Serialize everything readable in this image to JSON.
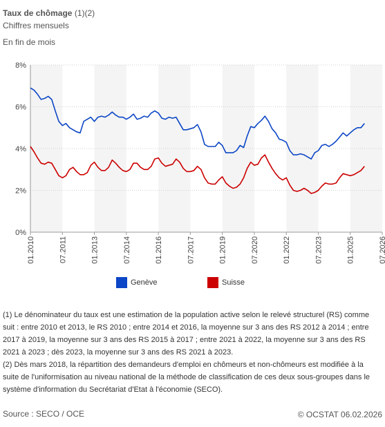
{
  "header": {
    "title_bold": "Taux de chômage",
    "title_refs": " (1)(2)",
    "subtitle": "Chiffres mensuels",
    "note": "En fin de mois"
  },
  "chart_data": {
    "type": "line",
    "title": "",
    "xlabel": "",
    "ylabel": "",
    "ylim": [
      0,
      8
    ],
    "yticks": [
      "0%",
      "2%",
      "4%",
      "6%",
      "8%"
    ],
    "xlim": [
      "2010-01",
      "2026-07"
    ],
    "xticks": [
      "01.2010",
      "07.2011",
      "01.2013",
      "07.2014",
      "01.2016",
      "07.2017",
      "01.2019",
      "07.2020",
      "01.2022",
      "07.2023",
      "01.2025",
      "07.2026"
    ],
    "grid": "vertical bands",
    "legend_position": "bottom",
    "series": [
      {
        "name": "Genève",
        "color": "#0b46c6",
        "points": [
          [
            "2010-01",
            6.9
          ],
          [
            "2010-03",
            6.8
          ],
          [
            "2010-05",
            6.6
          ],
          [
            "2010-07",
            6.35
          ],
          [
            "2010-09",
            6.4
          ],
          [
            "2010-11",
            6.5
          ],
          [
            "2011-01",
            6.35
          ],
          [
            "2011-03",
            5.8
          ],
          [
            "2011-05",
            5.3
          ],
          [
            "2011-07",
            5.1
          ],
          [
            "2011-09",
            5.2
          ],
          [
            "2011-11",
            5.0
          ],
          [
            "2012-01",
            4.9
          ],
          [
            "2012-03",
            4.8
          ],
          [
            "2012-05",
            4.75
          ],
          [
            "2012-07",
            5.3
          ],
          [
            "2012-09",
            5.4
          ],
          [
            "2012-11",
            5.5
          ],
          [
            "2013-01",
            5.3
          ],
          [
            "2013-03",
            5.5
          ],
          [
            "2013-05",
            5.55
          ],
          [
            "2013-07",
            5.5
          ],
          [
            "2013-09",
            5.6
          ],
          [
            "2013-11",
            5.75
          ],
          [
            "2014-01",
            5.6
          ],
          [
            "2014-03",
            5.5
          ],
          [
            "2014-05",
            5.5
          ],
          [
            "2014-07",
            5.4
          ],
          [
            "2014-09",
            5.5
          ],
          [
            "2014-11",
            5.65
          ],
          [
            "2015-01",
            5.4
          ],
          [
            "2015-03",
            5.45
          ],
          [
            "2015-05",
            5.55
          ],
          [
            "2015-07",
            5.5
          ],
          [
            "2015-09",
            5.7
          ],
          [
            "2015-11",
            5.8
          ],
          [
            "2016-01",
            5.7
          ],
          [
            "2016-03",
            5.45
          ],
          [
            "2016-05",
            5.4
          ],
          [
            "2016-07",
            5.5
          ],
          [
            "2016-09",
            5.45
          ],
          [
            "2016-11",
            5.5
          ],
          [
            "2017-01",
            5.2
          ],
          [
            "2017-03",
            4.9
          ],
          [
            "2017-05",
            4.9
          ],
          [
            "2017-07",
            4.95
          ],
          [
            "2017-09",
            5.0
          ],
          [
            "2017-11",
            5.15
          ],
          [
            "2018-01",
            4.8
          ],
          [
            "2018-03",
            4.2
          ],
          [
            "2018-05",
            4.1
          ],
          [
            "2018-07",
            4.1
          ],
          [
            "2018-09",
            4.1
          ],
          [
            "2018-11",
            4.3
          ],
          [
            "2019-01",
            4.15
          ],
          [
            "2019-03",
            3.8
          ],
          [
            "2019-05",
            3.8
          ],
          [
            "2019-07",
            3.8
          ],
          [
            "2019-09",
            3.9
          ],
          [
            "2019-11",
            4.15
          ],
          [
            "2020-01",
            4.05
          ],
          [
            "2020-03",
            4.6
          ],
          [
            "2020-05",
            5.05
          ],
          [
            "2020-07",
            5.0
          ],
          [
            "2020-09",
            5.2
          ],
          [
            "2020-11",
            5.35
          ],
          [
            "2021-01",
            5.55
          ],
          [
            "2021-03",
            5.3
          ],
          [
            "2021-05",
            4.95
          ],
          [
            "2021-07",
            4.75
          ],
          [
            "2021-09",
            4.45
          ],
          [
            "2021-11",
            4.4
          ],
          [
            "2022-01",
            4.3
          ],
          [
            "2022-03",
            3.9
          ],
          [
            "2022-05",
            3.7
          ],
          [
            "2022-07",
            3.7
          ],
          [
            "2022-09",
            3.75
          ],
          [
            "2022-11",
            3.7
          ],
          [
            "2023-01",
            3.6
          ],
          [
            "2023-03",
            3.5
          ],
          [
            "2023-05",
            3.8
          ],
          [
            "2023-07",
            3.9
          ],
          [
            "2023-09",
            4.15
          ],
          [
            "2023-11",
            4.2
          ],
          [
            "2024-01",
            4.1
          ],
          [
            "2024-03",
            4.2
          ],
          [
            "2024-05",
            4.35
          ],
          [
            "2024-07",
            4.55
          ],
          [
            "2024-09",
            4.75
          ],
          [
            "2024-11",
            4.6
          ],
          [
            "2025-01",
            4.75
          ],
          [
            "2025-03",
            4.9
          ],
          [
            "2025-05",
            5.0
          ],
          [
            "2025-07",
            5.0
          ],
          [
            "2025-09",
            5.2
          ]
        ]
      },
      {
        "name": "Suisse",
        "color": "#cc0000",
        "points": [
          [
            "2010-01",
            4.1
          ],
          [
            "2010-03",
            3.85
          ],
          [
            "2010-05",
            3.55
          ],
          [
            "2010-07",
            3.3
          ],
          [
            "2010-09",
            3.25
          ],
          [
            "2010-11",
            3.35
          ],
          [
            "2011-01",
            3.3
          ],
          [
            "2011-03",
            3.0
          ],
          [
            "2011-05",
            2.7
          ],
          [
            "2011-07",
            2.6
          ],
          [
            "2011-09",
            2.7
          ],
          [
            "2011-11",
            3.0
          ],
          [
            "2012-01",
            3.1
          ],
          [
            "2012-03",
            2.9
          ],
          [
            "2012-05",
            2.75
          ],
          [
            "2012-07",
            2.75
          ],
          [
            "2012-09",
            2.85
          ],
          [
            "2012-11",
            3.2
          ],
          [
            "2013-01",
            3.35
          ],
          [
            "2013-03",
            3.1
          ],
          [
            "2013-05",
            2.95
          ],
          [
            "2013-07",
            2.95
          ],
          [
            "2013-09",
            3.1
          ],
          [
            "2013-11",
            3.45
          ],
          [
            "2014-01",
            3.3
          ],
          [
            "2014-03",
            3.1
          ],
          [
            "2014-05",
            2.95
          ],
          [
            "2014-07",
            2.9
          ],
          [
            "2014-09",
            3.0
          ],
          [
            "2014-11",
            3.3
          ],
          [
            "2015-01",
            3.3
          ],
          [
            "2015-03",
            3.1
          ],
          [
            "2015-05",
            3.0
          ],
          [
            "2015-07",
            3.0
          ],
          [
            "2015-09",
            3.15
          ],
          [
            "2015-11",
            3.5
          ],
          [
            "2016-01",
            3.55
          ],
          [
            "2016-03",
            3.3
          ],
          [
            "2016-05",
            3.15
          ],
          [
            "2016-07",
            3.2
          ],
          [
            "2016-09",
            3.25
          ],
          [
            "2016-11",
            3.5
          ],
          [
            "2017-01",
            3.35
          ],
          [
            "2017-03",
            3.05
          ],
          [
            "2017-05",
            2.9
          ],
          [
            "2017-07",
            2.9
          ],
          [
            "2017-09",
            2.95
          ],
          [
            "2017-11",
            3.15
          ],
          [
            "2018-01",
            3.0
          ],
          [
            "2018-03",
            2.6
          ],
          [
            "2018-05",
            2.35
          ],
          [
            "2018-07",
            2.3
          ],
          [
            "2018-09",
            2.3
          ],
          [
            "2018-11",
            2.5
          ],
          [
            "2019-01",
            2.65
          ],
          [
            "2019-03",
            2.35
          ],
          [
            "2019-05",
            2.2
          ],
          [
            "2019-07",
            2.1
          ],
          [
            "2019-09",
            2.15
          ],
          [
            "2019-11",
            2.3
          ],
          [
            "2020-01",
            2.6
          ],
          [
            "2020-03",
            3.05
          ],
          [
            "2020-05",
            3.35
          ],
          [
            "2020-07",
            3.2
          ],
          [
            "2020-09",
            3.25
          ],
          [
            "2020-11",
            3.55
          ],
          [
            "2021-01",
            3.7
          ],
          [
            "2021-03",
            3.35
          ],
          [
            "2021-05",
            3.05
          ],
          [
            "2021-07",
            2.8
          ],
          [
            "2021-09",
            2.6
          ],
          [
            "2021-11",
            2.5
          ],
          [
            "2022-01",
            2.6
          ],
          [
            "2022-03",
            2.25
          ],
          [
            "2022-05",
            2.0
          ],
          [
            "2022-07",
            1.95
          ],
          [
            "2022-09",
            2.0
          ],
          [
            "2022-11",
            2.1
          ],
          [
            "2023-01",
            2.0
          ],
          [
            "2023-03",
            1.85
          ],
          [
            "2023-05",
            1.9
          ],
          [
            "2023-07",
            2.0
          ],
          [
            "2023-09",
            2.2
          ],
          [
            "2023-11",
            2.35
          ],
          [
            "2024-01",
            2.3
          ],
          [
            "2024-03",
            2.3
          ],
          [
            "2024-05",
            2.35
          ],
          [
            "2024-07",
            2.6
          ],
          [
            "2024-09",
            2.8
          ],
          [
            "2024-11",
            2.75
          ],
          [
            "2025-01",
            2.7
          ],
          [
            "2025-03",
            2.75
          ],
          [
            "2025-05",
            2.85
          ],
          [
            "2025-07",
            2.95
          ],
          [
            "2025-09",
            3.15
          ]
        ]
      }
    ]
  },
  "legend": [
    {
      "label": "Genève",
      "color": "#0b46c6"
    },
    {
      "label": "Suisse",
      "color": "#cc0000"
    }
  ],
  "footnotes": {
    "note1": "(1) Le dénominateur du taux est une estimation de la population active selon le relevé structurel (RS) comme suit : entre 2010 et 2013, le RS 2010 ; entre 2014 et 2016, la moyenne sur 3 ans des RS 2012 à 2014 ; entre 2017 à 2019, la moyenne sur 3 ans des RS 2015 à 2017 ; entre 2021 à 2022, la moyenne sur 3 ans des RS 2021 à 2023 ; dès 2023, la moyenne sur 3 ans des RS 2021 à 2023.",
    "note2": "(2) Dès mars 2018, la répartition des demandeurs d'emploi en chômeurs et non-chômeurs est modifiée à la suite de l'uniformisation au niveau national de la méthode de classification de ces deux sous-groupes dans le système d'information du Secrétariat d'Etat à l'économie (SECO)."
  },
  "footer": {
    "source": "Source : SECO / OCE",
    "copyright": "© OCSTAT 06.02.2026"
  }
}
